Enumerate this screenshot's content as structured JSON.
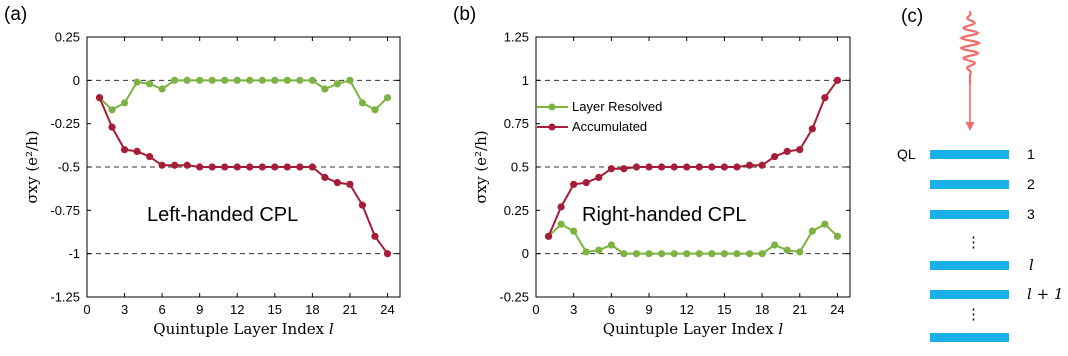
{
  "chart_data": [
    {
      "type": "line",
      "panel_label": "(a)",
      "annotation": "Left-handed CPL",
      "xlabel": "Quintuple Layer Index",
      "xlabel_var": "l",
      "ylabel": "σxy (e²/h)",
      "xlim": [
        0,
        25
      ],
      "ylim": [
        -1.25,
        0.25
      ],
      "xticks": [
        0,
        3,
        6,
        9,
        12,
        15,
        18,
        21,
        24
      ],
      "xtick_labels": [
        "0",
        "3",
        "6",
        "9",
        "12",
        "15",
        "18",
        "21",
        "24"
      ],
      "yticks": [
        0.25,
        0,
        -0.25,
        -0.5,
        -0.75,
        -1,
        -1.25
      ],
      "ytick_labels": [
        "0.25",
        "0",
        "-0.25",
        "-0.5",
        "-0.75",
        "-1",
        "-1.25"
      ],
      "dashed_lines": [
        0,
        -0.5,
        -1
      ],
      "series": [
        {
          "name": "Layer Resolved",
          "color": "#7cb342",
          "x": [
            1,
            2,
            3,
            4,
            5,
            6,
            7,
            8,
            9,
            10,
            11,
            12,
            13,
            14,
            15,
            16,
            17,
            18,
            19,
            20,
            21,
            22,
            23,
            24
          ],
          "y": [
            -0.1,
            -0.17,
            -0.13,
            -0.01,
            -0.02,
            -0.05,
            0,
            0,
            0,
            0,
            0,
            0,
            0,
            0,
            0,
            0,
            0,
            0,
            -0.05,
            -0.02,
            0,
            -0.13,
            -0.17,
            -0.1
          ]
        },
        {
          "name": "Accumulated",
          "color": "#a51d36",
          "x": [
            1,
            2,
            3,
            4,
            5,
            6,
            7,
            8,
            9,
            10,
            11,
            12,
            13,
            14,
            15,
            16,
            17,
            18,
            19,
            20,
            21,
            22,
            23,
            24
          ],
          "y": [
            -0.1,
            -0.27,
            -0.4,
            -0.41,
            -0.44,
            -0.49,
            -0.49,
            -0.49,
            -0.5,
            -0.5,
            -0.5,
            -0.5,
            -0.5,
            -0.5,
            -0.5,
            -0.5,
            -0.5,
            -0.5,
            -0.56,
            -0.59,
            -0.6,
            -0.72,
            -0.9,
            -1.0
          ]
        }
      ]
    },
    {
      "type": "line",
      "panel_label": "(b)",
      "annotation": "Right-handed CPL",
      "xlabel": "Quintuple Layer Index",
      "xlabel_var": "l",
      "ylabel": "σxy (e²/h)",
      "xlim": [
        0,
        25
      ],
      "ylim": [
        -0.25,
        1.25
      ],
      "xticks": [
        0,
        3,
        6,
        9,
        12,
        15,
        18,
        21,
        24
      ],
      "xtick_labels": [
        "0",
        "3",
        "6",
        "9",
        "12",
        "15",
        "18",
        "21",
        "24"
      ],
      "yticks": [
        1.25,
        1,
        0.75,
        0.5,
        0.25,
        0,
        -0.25
      ],
      "ytick_labels": [
        "1.25",
        "1",
        "0.75",
        "0.5",
        "0.25",
        "0",
        "-0.25"
      ],
      "dashed_lines": [
        1,
        0.5,
        0
      ],
      "legend": [
        "Layer Resolved",
        "Accumulated"
      ],
      "series": [
        {
          "name": "Layer Resolved",
          "color": "#7cb342",
          "x": [
            1,
            2,
            3,
            4,
            5,
            6,
            7,
            8,
            9,
            10,
            11,
            12,
            13,
            14,
            15,
            16,
            17,
            18,
            19,
            20,
            21,
            22,
            23,
            24
          ],
          "y": [
            0.1,
            0.17,
            0.13,
            0.01,
            0.02,
            0.05,
            0,
            0,
            0,
            0,
            0,
            0,
            0,
            0,
            0,
            0,
            0,
            0,
            0.05,
            0.02,
            0.01,
            0.13,
            0.17,
            0.1
          ]
        },
        {
          "name": "Accumulated",
          "color": "#a51d36",
          "x": [
            1,
            2,
            3,
            4,
            5,
            6,
            7,
            8,
            9,
            10,
            11,
            12,
            13,
            14,
            15,
            16,
            17,
            18,
            19,
            20,
            21,
            22,
            23,
            24
          ],
          "y": [
            0.1,
            0.27,
            0.4,
            0.41,
            0.44,
            0.49,
            0.49,
            0.5,
            0.5,
            0.5,
            0.5,
            0.5,
            0.5,
            0.5,
            0.5,
            0.5,
            0.51,
            0.51,
            0.56,
            0.59,
            0.6,
            0.72,
            0.9,
            1.0
          ]
        }
      ]
    }
  ],
  "diagram": {
    "panel_label": "(c)",
    "ql_label": "QL",
    "layer_labels": [
      "1",
      "2",
      "3",
      "⋮",
      "l",
      "l + 1",
      "⋮"
    ],
    "layer_color": "#1ab0e8",
    "wave_color": "#f26d6d"
  }
}
